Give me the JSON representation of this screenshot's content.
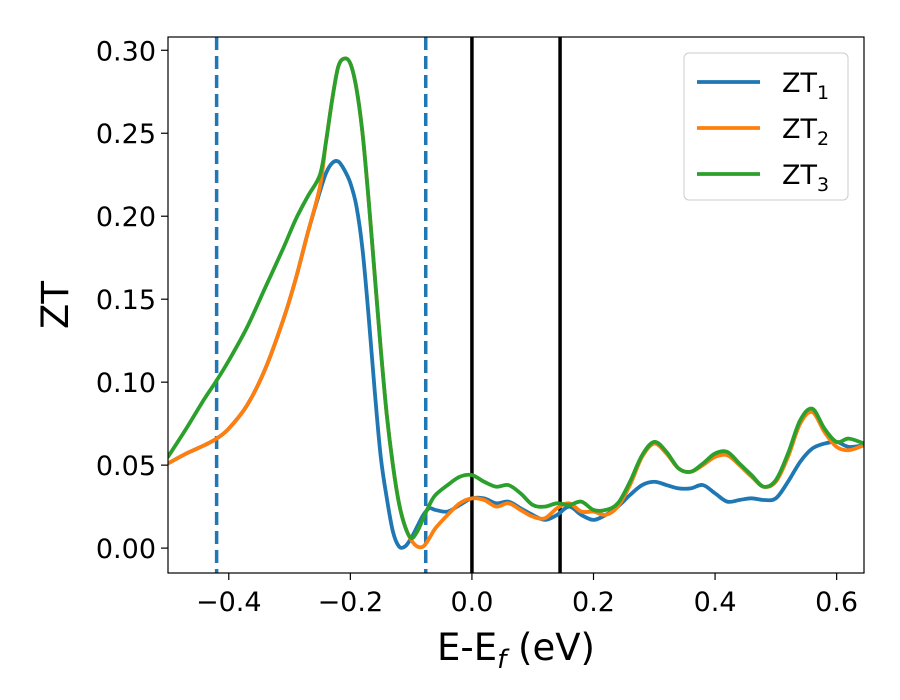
{
  "chart_data": {
    "type": "line",
    "title": "",
    "xlabel": "E-E",
    "xlabel_sub": "f",
    "xlabel_unit": " (eV)",
    "ylabel": "ZT",
    "xlim": [
      -0.5,
      0.645
    ],
    "ylim": [
      -0.015,
      0.308
    ],
    "grid": false,
    "legend_position": "top-right",
    "xticks": [
      -0.4,
      -0.2,
      0.0,
      0.2,
      0.4,
      0.6
    ],
    "xtick_labels": [
      "−0.4",
      "−0.2",
      "0.0",
      "0.2",
      "0.4",
      "0.6"
    ],
    "yticks": [
      0.0,
      0.05,
      0.1,
      0.15,
      0.2,
      0.25,
      0.3
    ],
    "ytick_labels": [
      "0.00",
      "0.05",
      "0.10",
      "0.15",
      "0.20",
      "0.25",
      "0.30"
    ],
    "vlines": [
      {
        "x": -0.42,
        "style": "dashed",
        "color": "#1f77b4"
      },
      {
        "x": -0.076,
        "style": "dashed",
        "color": "#1f77b4"
      },
      {
        "x": 0.0,
        "style": "solid",
        "color": "#000000"
      },
      {
        "x": 0.145,
        "style": "solid",
        "color": "#000000"
      }
    ],
    "series": [
      {
        "name": "ZT",
        "name_sub": "1",
        "color": "#1f77b4",
        "points": [
          [
            -0.5,
            0.051
          ],
          [
            -0.47,
            0.057
          ],
          [
            -0.44,
            0.062
          ],
          [
            -0.42,
            0.066
          ],
          [
            -0.4,
            0.072
          ],
          [
            -0.37,
            0.086
          ],
          [
            -0.34,
            0.108
          ],
          [
            -0.31,
            0.138
          ],
          [
            -0.29,
            0.162
          ],
          [
            -0.27,
            0.19
          ],
          [
            -0.25,
            0.215
          ],
          [
            -0.24,
            0.226
          ],
          [
            -0.23,
            0.232
          ],
          [
            -0.22,
            0.233
          ],
          [
            -0.21,
            0.228
          ],
          [
            -0.2,
            0.22
          ],
          [
            -0.19,
            0.206
          ],
          [
            -0.18,
            0.18
          ],
          [
            -0.17,
            0.14
          ],
          [
            -0.16,
            0.095
          ],
          [
            -0.15,
            0.055
          ],
          [
            -0.14,
            0.03
          ],
          [
            -0.13,
            0.01
          ],
          [
            -0.12,
            0.001
          ],
          [
            -0.11,
            0.001
          ],
          [
            -0.1,
            0.006
          ],
          [
            -0.09,
            0.013
          ],
          [
            -0.08,
            0.02
          ],
          [
            -0.07,
            0.024
          ],
          [
            -0.06,
            0.023
          ],
          [
            -0.04,
            0.022
          ],
          [
            -0.02,
            0.026
          ],
          [
            0.0,
            0.03
          ],
          [
            0.02,
            0.03
          ],
          [
            0.04,
            0.027
          ],
          [
            0.06,
            0.028
          ],
          [
            0.08,
            0.024
          ],
          [
            0.1,
            0.02
          ],
          [
            0.12,
            0.017
          ],
          [
            0.14,
            0.02
          ],
          [
            0.16,
            0.025
          ],
          [
            0.18,
            0.02
          ],
          [
            0.2,
            0.017
          ],
          [
            0.22,
            0.02
          ],
          [
            0.24,
            0.025
          ],
          [
            0.26,
            0.032
          ],
          [
            0.28,
            0.038
          ],
          [
            0.3,
            0.04
          ],
          [
            0.32,
            0.038
          ],
          [
            0.34,
            0.036
          ],
          [
            0.36,
            0.036
          ],
          [
            0.38,
            0.038
          ],
          [
            0.4,
            0.033
          ],
          [
            0.42,
            0.028
          ],
          [
            0.44,
            0.029
          ],
          [
            0.46,
            0.03
          ],
          [
            0.48,
            0.029
          ],
          [
            0.5,
            0.03
          ],
          [
            0.52,
            0.04
          ],
          [
            0.54,
            0.052
          ],
          [
            0.56,
            0.06
          ],
          [
            0.58,
            0.063
          ],
          [
            0.6,
            0.064
          ],
          [
            0.62,
            0.061
          ],
          [
            0.645,
            0.062
          ]
        ]
      },
      {
        "name": "ZT",
        "name_sub": "2",
        "color": "#ff7f0e",
        "points": [
          [
            -0.5,
            0.051
          ],
          [
            -0.47,
            0.057
          ],
          [
            -0.44,
            0.062
          ],
          [
            -0.42,
            0.066
          ],
          [
            -0.4,
            0.072
          ],
          [
            -0.37,
            0.086
          ],
          [
            -0.34,
            0.108
          ],
          [
            -0.31,
            0.138
          ],
          [
            -0.29,
            0.162
          ],
          [
            -0.27,
            0.19
          ],
          [
            -0.25,
            0.218
          ],
          [
            -0.24,
            0.245
          ],
          [
            -0.23,
            0.27
          ],
          [
            -0.22,
            0.29
          ],
          [
            -0.21,
            0.295
          ],
          [
            -0.2,
            0.292
          ],
          [
            -0.19,
            0.277
          ],
          [
            -0.18,
            0.25
          ],
          [
            -0.17,
            0.21
          ],
          [
            -0.16,
            0.165
          ],
          [
            -0.15,
            0.12
          ],
          [
            -0.14,
            0.08
          ],
          [
            -0.13,
            0.05
          ],
          [
            -0.12,
            0.027
          ],
          [
            -0.11,
            0.013
          ],
          [
            -0.1,
            0.005
          ],
          [
            -0.09,
            0.001
          ],
          [
            -0.08,
            0.001
          ],
          [
            -0.07,
            0.006
          ],
          [
            -0.06,
            0.012
          ],
          [
            -0.04,
            0.02
          ],
          [
            -0.02,
            0.027
          ],
          [
            0.0,
            0.03
          ],
          [
            0.02,
            0.029
          ],
          [
            0.04,
            0.025
          ],
          [
            0.06,
            0.027
          ],
          [
            0.08,
            0.023
          ],
          [
            0.1,
            0.019
          ],
          [
            0.12,
            0.018
          ],
          [
            0.14,
            0.024
          ],
          [
            0.16,
            0.027
          ],
          [
            0.18,
            0.022
          ],
          [
            0.2,
            0.022
          ],
          [
            0.22,
            0.02
          ],
          [
            0.24,
            0.025
          ],
          [
            0.26,
            0.038
          ],
          [
            0.28,
            0.055
          ],
          [
            0.3,
            0.063
          ],
          [
            0.32,
            0.057
          ],
          [
            0.34,
            0.048
          ],
          [
            0.36,
            0.046
          ],
          [
            0.38,
            0.05
          ],
          [
            0.4,
            0.055
          ],
          [
            0.42,
            0.056
          ],
          [
            0.44,
            0.05
          ],
          [
            0.46,
            0.043
          ],
          [
            0.48,
            0.037
          ],
          [
            0.5,
            0.04
          ],
          [
            0.52,
            0.055
          ],
          [
            0.54,
            0.075
          ],
          [
            0.56,
            0.082
          ],
          [
            0.58,
            0.07
          ],
          [
            0.6,
            0.061
          ],
          [
            0.62,
            0.059
          ],
          [
            0.645,
            0.062
          ]
        ]
      },
      {
        "name": "ZT",
        "name_sub": "3",
        "color": "#2ca02c",
        "points": [
          [
            -0.5,
            0.055
          ],
          [
            -0.47,
            0.072
          ],
          [
            -0.44,
            0.09
          ],
          [
            -0.42,
            0.101
          ],
          [
            -0.4,
            0.113
          ],
          [
            -0.37,
            0.133
          ],
          [
            -0.34,
            0.157
          ],
          [
            -0.31,
            0.181
          ],
          [
            -0.29,
            0.198
          ],
          [
            -0.27,
            0.212
          ],
          [
            -0.25,
            0.225
          ],
          [
            -0.24,
            0.245
          ],
          [
            -0.23,
            0.27
          ],
          [
            -0.22,
            0.29
          ],
          [
            -0.21,
            0.295
          ],
          [
            -0.2,
            0.292
          ],
          [
            -0.19,
            0.277
          ],
          [
            -0.18,
            0.25
          ],
          [
            -0.17,
            0.21
          ],
          [
            -0.16,
            0.165
          ],
          [
            -0.15,
            0.12
          ],
          [
            -0.14,
            0.08
          ],
          [
            -0.13,
            0.05
          ],
          [
            -0.12,
            0.027
          ],
          [
            -0.11,
            0.013
          ],
          [
            -0.1,
            0.006
          ],
          [
            -0.09,
            0.01
          ],
          [
            -0.08,
            0.018
          ],
          [
            -0.07,
            0.026
          ],
          [
            -0.06,
            0.032
          ],
          [
            -0.04,
            0.038
          ],
          [
            -0.02,
            0.043
          ],
          [
            0.0,
            0.044
          ],
          [
            0.02,
            0.04
          ],
          [
            0.04,
            0.037
          ],
          [
            0.06,
            0.038
          ],
          [
            0.08,
            0.033
          ],
          [
            0.1,
            0.026
          ],
          [
            0.12,
            0.025
          ],
          [
            0.14,
            0.027
          ],
          [
            0.16,
            0.026
          ],
          [
            0.18,
            0.028
          ],
          [
            0.2,
            0.023
          ],
          [
            0.22,
            0.023
          ],
          [
            0.24,
            0.027
          ],
          [
            0.26,
            0.04
          ],
          [
            0.28,
            0.056
          ],
          [
            0.3,
            0.064
          ],
          [
            0.32,
            0.058
          ],
          [
            0.34,
            0.048
          ],
          [
            0.36,
            0.046
          ],
          [
            0.38,
            0.051
          ],
          [
            0.4,
            0.057
          ],
          [
            0.42,
            0.058
          ],
          [
            0.44,
            0.051
          ],
          [
            0.46,
            0.044
          ],
          [
            0.48,
            0.037
          ],
          [
            0.5,
            0.041
          ],
          [
            0.52,
            0.057
          ],
          [
            0.54,
            0.077
          ],
          [
            0.56,
            0.084
          ],
          [
            0.58,
            0.072
          ],
          [
            0.6,
            0.064
          ],
          [
            0.62,
            0.066
          ],
          [
            0.645,
            0.063
          ]
        ]
      }
    ]
  }
}
